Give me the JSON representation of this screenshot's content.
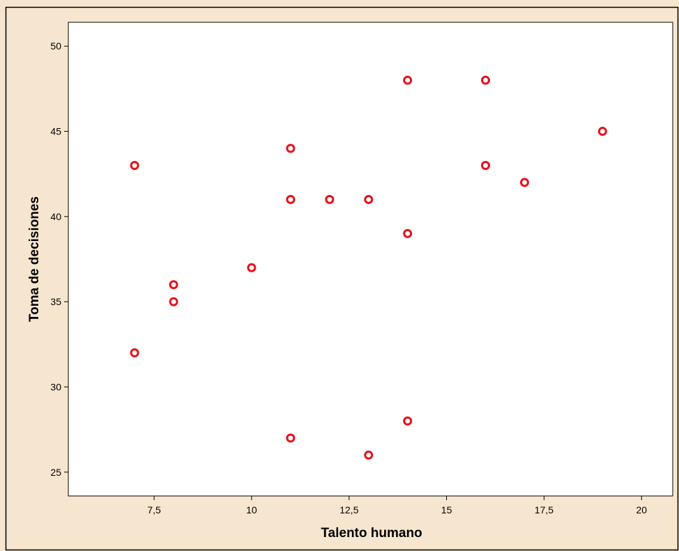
{
  "chart_data": {
    "type": "scatter",
    "title": "",
    "xlabel": "Talento humano",
    "ylabel": "Toma de decisiones",
    "xlim": [
      5.3,
      20.8
    ],
    "ylim": [
      23.6,
      51.4
    ],
    "x_ticks": [
      7.5,
      10,
      12.5,
      15,
      17.5,
      20
    ],
    "x_tick_labels": [
      "7,5",
      "10",
      "12,5",
      "15",
      "17,5",
      "20"
    ],
    "y_ticks": [
      25,
      30,
      35,
      40,
      45,
      50
    ],
    "y_tick_labels": [
      "25",
      "30",
      "35",
      "40",
      "45",
      "50"
    ],
    "grid": false,
    "series": [
      {
        "points": [
          {
            "x": 7,
            "y": 43
          },
          {
            "x": 7,
            "y": 32
          },
          {
            "x": 8,
            "y": 36
          },
          {
            "x": 8,
            "y": 35
          },
          {
            "x": 10,
            "y": 37
          },
          {
            "x": 11,
            "y": 44
          },
          {
            "x": 11,
            "y": 41
          },
          {
            "x": 11,
            "y": 27
          },
          {
            "x": 12,
            "y": 41
          },
          {
            "x": 13,
            "y": 41
          },
          {
            "x": 13,
            "y": 26
          },
          {
            "x": 14,
            "y": 48
          },
          {
            "x": 14,
            "y": 39
          },
          {
            "x": 14,
            "y": 28
          },
          {
            "x": 16,
            "y": 48
          },
          {
            "x": 16,
            "y": 43
          },
          {
            "x": 17,
            "y": 42
          },
          {
            "x": 19,
            "y": 45
          }
        ]
      }
    ],
    "colors": {
      "frame_background": "#f7e6cf",
      "plot_background": "#ffffff",
      "marker": "#e8101a",
      "axis": "#000000"
    }
  }
}
